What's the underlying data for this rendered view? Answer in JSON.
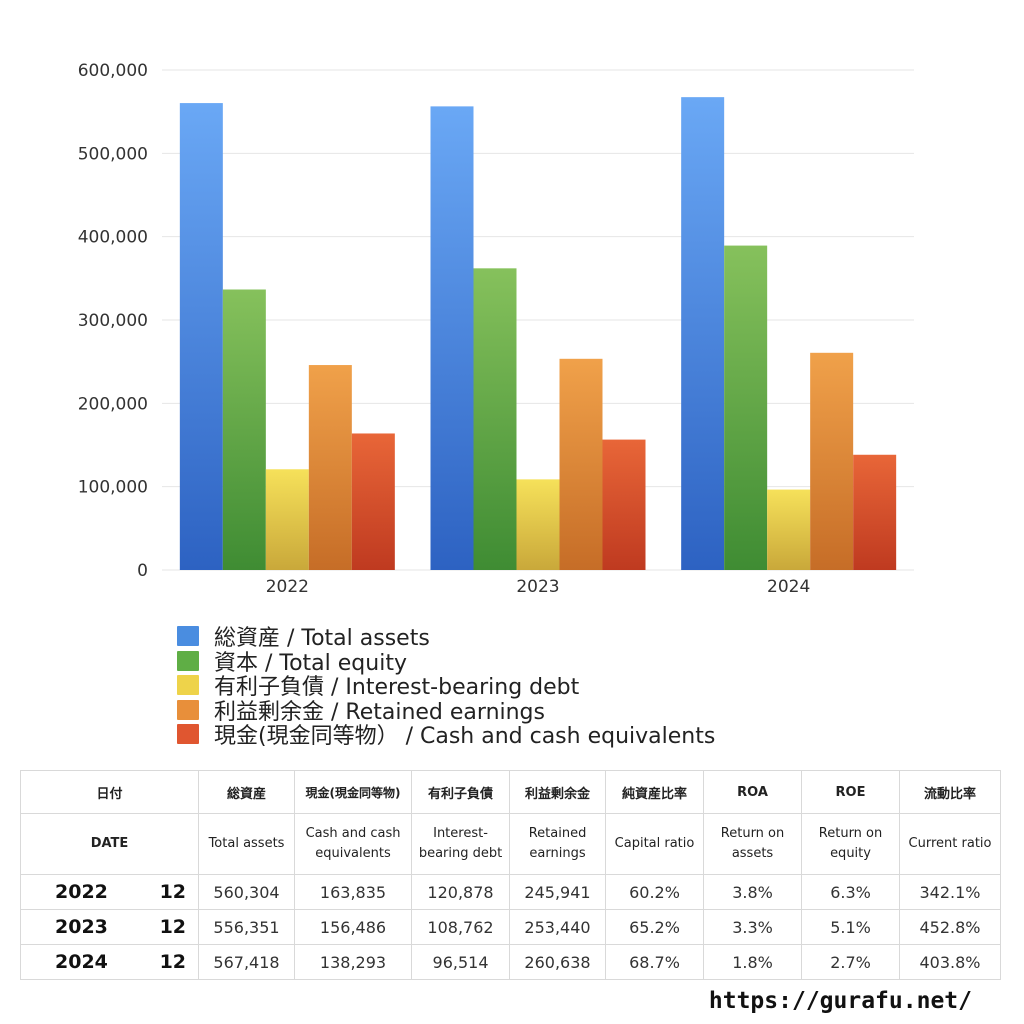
{
  "chart_data": {
    "type": "bar",
    "categories": [
      "2022",
      "2023",
      "2024"
    ],
    "ylim": [
      0,
      600000
    ],
    "yticks": [
      "0",
      "100,000",
      "200,000",
      "300,000",
      "400,000",
      "500,000",
      "600,000"
    ],
    "grid": true,
    "legend_position": "bottom",
    "series": [
      {
        "name": "総資産 / Total assets",
        "values": [
          560304,
          556351,
          567418
        ],
        "color": "#4a8de0"
      },
      {
        "name": "資本 / Total equity",
        "values": [
          336600,
          362000,
          389300
        ],
        "color": "#5fae45"
      },
      {
        "name": "有利子負債 / Interest-bearing debt",
        "values": [
          120878,
          108762,
          96514
        ],
        "color": "#eed34a"
      },
      {
        "name": "利益剰余金 / Retained earnings",
        "values": [
          245941,
          253440,
          260638
        ],
        "color": "#e88f3a"
      },
      {
        "name": "現金(現金同等物）  /  Cash and cash equivalents",
        "values": [
          163835,
          156486,
          138293
        ],
        "color": "#e05630"
      }
    ]
  },
  "table": {
    "header_jp": {
      "date": "日付",
      "total_assets": "総資産",
      "cash": "現金(現金同等物)",
      "debt": "有利子負債",
      "retained": "利益剰余金",
      "capital_ratio": "純資産比率",
      "roa": "ROA",
      "roe": "ROE",
      "current_ratio": "流動比率"
    },
    "header_en": {
      "date": "DATE",
      "total_assets": "Total assets",
      "cash": "Cash and cash equivalents",
      "debt": "Interest-bearing debt",
      "retained": "Retained earnings",
      "capital_ratio": "Capital ratio",
      "roa": "Return on assets",
      "roe": "Return on equity",
      "current_ratio": "Current ratio"
    },
    "rows": [
      {
        "year": "2022",
        "month": "12",
        "total_assets": "560,304",
        "cash": "163,835",
        "debt": "120,878",
        "retained": "245,941",
        "capital_ratio": "60.2%",
        "roa": "3.8%",
        "roe": "6.3%",
        "current_ratio": "342.1%"
      },
      {
        "year": "2023",
        "month": "12",
        "total_assets": "556,351",
        "cash": "156,486",
        "debt": "108,762",
        "retained": "253,440",
        "capital_ratio": "65.2%",
        "roa": "3.3%",
        "roe": "5.1%",
        "current_ratio": "452.8%"
      },
      {
        "year": "2024",
        "month": "12",
        "total_assets": "567,418",
        "cash": "138,293",
        "debt": "96,514",
        "retained": "260,638",
        "capital_ratio": "68.7%",
        "roa": "1.8%",
        "roe": "2.7%",
        "current_ratio": "403.8%"
      }
    ]
  },
  "footer": "https://gurafu.net/"
}
